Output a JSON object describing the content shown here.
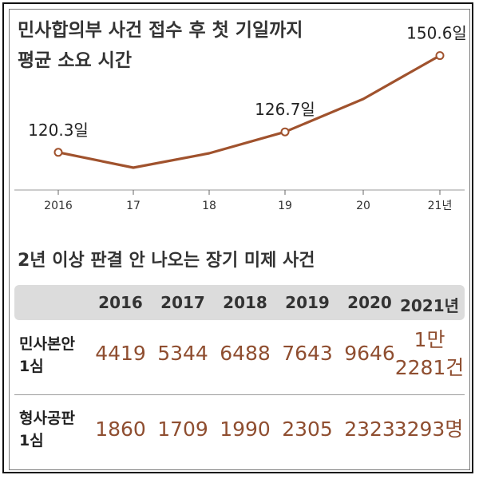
{
  "chart_data": [
    {
      "type": "line",
      "title": "민사합의부 사건 접수 후 첫 기일까지 평균 소요 시간",
      "title_lines": [
        "민사합의부 사건 접수 후 첫 기일까지",
        "평균 소요 시간"
      ],
      "categories": [
        "2016",
        "17",
        "18",
        "19",
        "20",
        "21년"
      ],
      "values": [
        120.3,
        115.5,
        120,
        126.7,
        137,
        150.6
      ],
      "labeled_points": {
        "0": "120.3일",
        "3": "126.7일",
        "5": "150.6일"
      },
      "ylim": [
        108,
        158
      ],
      "color": "#a0522d",
      "grid": false
    },
    {
      "type": "table",
      "title": "2년 이상 판결 안 나오는 장기 미제 사건",
      "columns": [
        "2016",
        "2017",
        "2018",
        "2019",
        "2020",
        "2021년"
      ],
      "rows": [
        {
          "label": [
            "민사본안",
            "1심"
          ],
          "values": [
            "4419",
            "5344",
            "6488",
            "7643",
            "9646",
            [
              "1만",
              "2281건"
            ]
          ]
        },
        {
          "label": [
            "형사공판",
            "1심"
          ],
          "values": [
            "1860",
            "1709",
            "1990",
            "2305",
            "2323",
            "3293명"
          ]
        }
      ],
      "header_bg": "#dcdcdc",
      "value_color": "#8f4e30"
    }
  ]
}
